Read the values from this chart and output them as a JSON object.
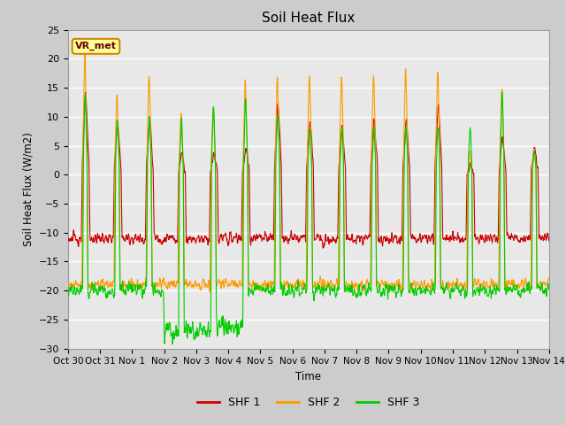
{
  "title": "Soil Heat Flux",
  "ylabel": "Soil Heat Flux (W/m2)",
  "xlabel": "Time",
  "ylim": [
    -30,
    25
  ],
  "yticks": [
    -30,
    -25,
    -20,
    -15,
    -10,
    -5,
    0,
    5,
    10,
    15,
    20,
    25
  ],
  "fig_bg_color": "#cccccc",
  "plot_bg": "#e8e8e8",
  "colors": {
    "SHF1": "#cc0000",
    "SHF2": "#ff9900",
    "SHF3": "#00cc00"
  },
  "legend_labels": [
    "SHF 1",
    "SHF 2",
    "SHF 3"
  ],
  "annotation_text": "VR_met",
  "annotation_bg": "#ffff99",
  "annotation_border": "#cc8800",
  "x_tick_labels": [
    "Oct 30",
    "Oct 31",
    "Nov 1",
    "Nov 2",
    "Nov 3",
    "Nov 4",
    "Nov 5",
    "Nov 6",
    "Nov 7",
    "Nov 8",
    "Nov 9",
    "Nov 10",
    "Nov 11",
    "Nov 12",
    "Nov 13",
    "Nov 14"
  ],
  "num_days": 15,
  "points_per_day": 96
}
